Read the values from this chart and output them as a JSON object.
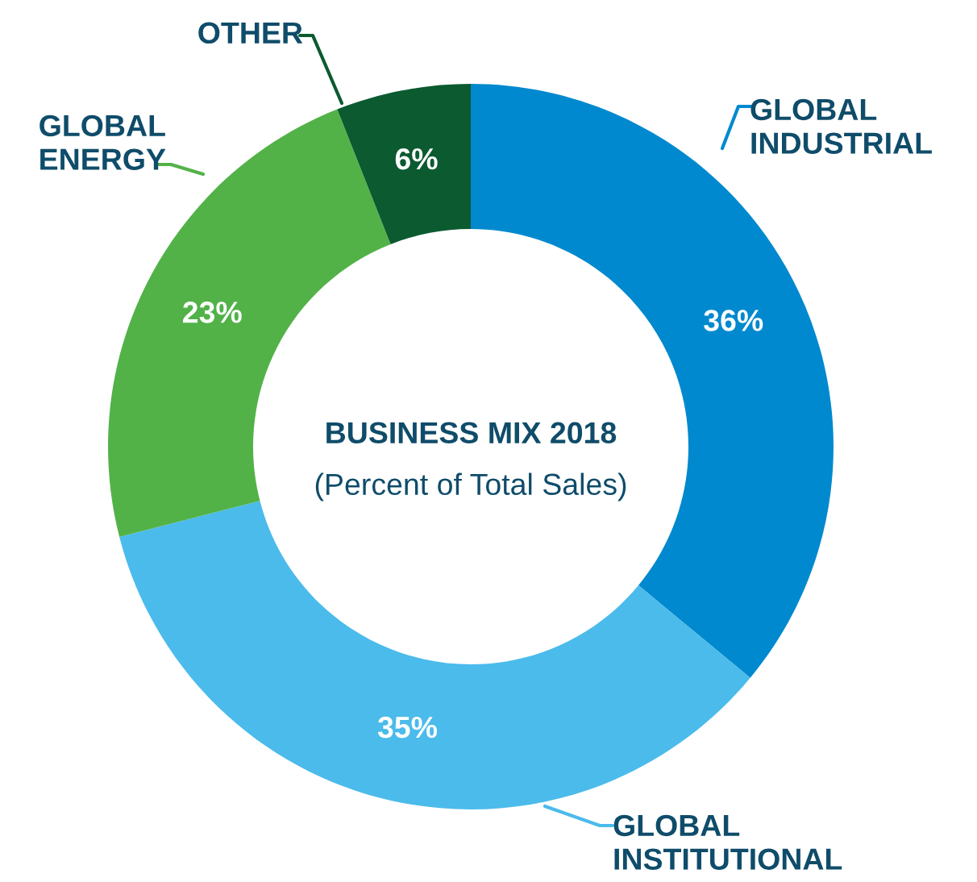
{
  "chart_data": {
    "type": "donut",
    "title": "BUSINESS MIX 2018",
    "subtitle": "(Percent of Total Sales)",
    "categories": [
      "GLOBAL\nINDUSTRIAL",
      "GLOBAL\nINSTITUTIONAL",
      "GLOBAL\nENERGY",
      "OTHER"
    ],
    "values": [
      36,
      35,
      23,
      6
    ],
    "colors": [
      "#0089cf",
      "#4bbbeb",
      "#52b248",
      "#0b5a30"
    ],
    "value_labels": [
      "36%",
      "35%",
      "23%",
      "6%"
    ],
    "legend": false
  }
}
